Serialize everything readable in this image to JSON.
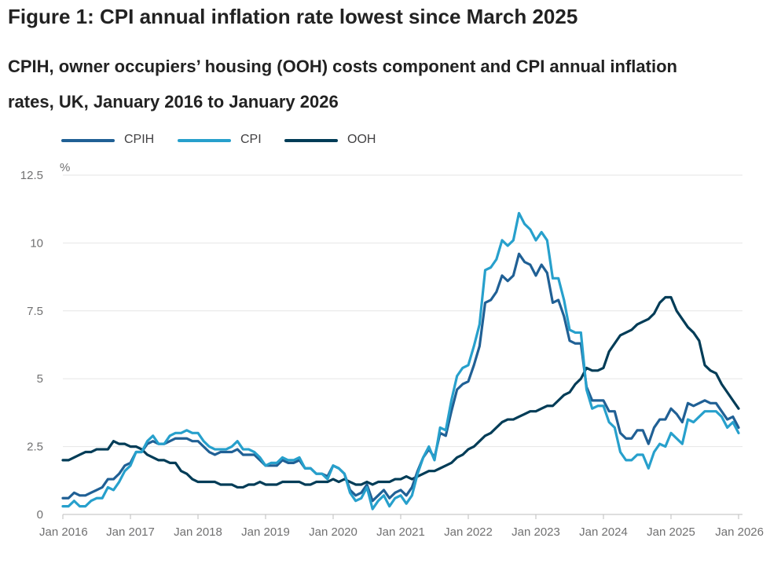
{
  "figure": {
    "title": "Figure 1: CPI annual inflation rate lowest since March 2025",
    "subtitle": "CPIH, owner occupiers’ housing (OOH) costs component and CPI annual inflation rates, UK, January 2016 to January 2026"
  },
  "colors": {
    "CPIH": "#206095",
    "CPI": "#27a0cc",
    "OOH": "#003c57",
    "grid": "#e6e6e6",
    "axis": "#bebebe",
    "text": "#707071"
  },
  "legend": [
    {
      "series": "CPIH",
      "label": "CPIH"
    },
    {
      "series": "CPI",
      "label": "CPI"
    },
    {
      "series": "OOH",
      "label": "OOH"
    }
  ],
  "chart_data": {
    "type": "line",
    "title": "CPIH, owner occupiers’ housing (OOH) costs component and CPI annual inflation rates, UK, January 2016 to January 2026",
    "ylabel": "%",
    "xlabel": "",
    "ylim": [
      0,
      12.5
    ],
    "y_ticks": [
      0,
      2.5,
      5,
      7.5,
      10,
      12.5
    ],
    "y_tick_labels": [
      "0",
      "2.5",
      "5",
      "7.5",
      "10",
      "12.5"
    ],
    "x_tick_labels": [
      "Jan 2016",
      "Jan 2017",
      "Jan 2018",
      "Jan 2019",
      "Jan 2020",
      "Jan 2021",
      "Jan 2022",
      "Jan 2023",
      "Jan 2024",
      "Jan 2025",
      "Jan 2026"
    ],
    "x_start": "Jan 2016",
    "x_end": "Jan 2026",
    "frequency": "monthly",
    "grid": "horizontal",
    "legend_position": "top-left",
    "series": [
      {
        "name": "CPIH",
        "values": [
          0.6,
          0.6,
          0.8,
          0.7,
          0.7,
          0.8,
          0.9,
          1.0,
          1.3,
          1.3,
          1.5,
          1.8,
          1.9,
          2.3,
          2.3,
          2.6,
          2.7,
          2.6,
          2.6,
          2.7,
          2.8,
          2.8,
          2.8,
          2.7,
          2.7,
          2.5,
          2.3,
          2.2,
          2.3,
          2.3,
          2.3,
          2.4,
          2.2,
          2.2,
          2.2,
          2.0,
          1.8,
          1.8,
          1.8,
          2.0,
          1.9,
          1.9,
          2.0,
          1.7,
          1.7,
          1.5,
          1.5,
          1.4,
          1.8,
          1.7,
          1.5,
          0.9,
          0.7,
          0.8,
          1.1,
          0.5,
          0.7,
          0.9,
          0.6,
          0.8,
          0.9,
          0.7,
          1.0,
          1.6,
          2.1,
          2.4,
          2.1,
          3.0,
          2.9,
          3.8,
          4.6,
          4.8,
          4.9,
          5.5,
          6.2,
          7.8,
          7.9,
          8.2,
          8.8,
          8.6,
          8.8,
          9.6,
          9.3,
          9.2,
          8.8,
          9.2,
          8.9,
          7.8,
          7.9,
          7.3,
          6.4,
          6.3,
          6.3,
          4.7,
          4.2,
          4.2,
          4.2,
          3.8,
          3.8,
          3.0,
          2.8,
          2.8,
          3.1,
          3.1,
          2.6,
          3.2,
          3.5,
          3.5,
          3.9,
          3.7,
          3.4,
          4.1,
          4.0,
          4.1,
          4.2,
          4.1,
          4.1,
          3.8,
          3.5,
          3.6,
          3.2
        ]
      },
      {
        "name": "CPI",
        "values": [
          0.3,
          0.3,
          0.5,
          0.3,
          0.3,
          0.5,
          0.6,
          0.6,
          1.0,
          0.9,
          1.2,
          1.6,
          1.8,
          2.3,
          2.3,
          2.7,
          2.9,
          2.6,
          2.6,
          2.9,
          3.0,
          3.0,
          3.1,
          3.0,
          3.0,
          2.7,
          2.5,
          2.4,
          2.4,
          2.4,
          2.5,
          2.7,
          2.4,
          2.4,
          2.3,
          2.1,
          1.8,
          1.9,
          1.9,
          2.1,
          2.0,
          2.0,
          2.1,
          1.7,
          1.7,
          1.5,
          1.5,
          1.3,
          1.8,
          1.7,
          1.5,
          0.8,
          0.5,
          0.6,
          1.0,
          0.2,
          0.5,
          0.7,
          0.3,
          0.6,
          0.7,
          0.4,
          0.7,
          1.5,
          2.1,
          2.5,
          2.0,
          3.2,
          3.1,
          4.2,
          5.1,
          5.4,
          5.5,
          6.2,
          7.0,
          9.0,
          9.1,
          9.4,
          10.1,
          9.9,
          10.1,
          11.1,
          10.7,
          10.5,
          10.1,
          10.4,
          10.1,
          8.7,
          8.7,
          7.9,
          6.8,
          6.7,
          6.7,
          4.6,
          3.9,
          4.0,
          4.0,
          3.4,
          3.2,
          2.3,
          2.0,
          2.0,
          2.2,
          2.2,
          1.7,
          2.3,
          2.6,
          2.5,
          3.0,
          2.8,
          2.6,
          3.5,
          3.4,
          3.6,
          3.8,
          3.8,
          3.8,
          3.6,
          3.2,
          3.4,
          3.0
        ]
      },
      {
        "name": "OOH",
        "values": [
          2.0,
          2.0,
          2.1,
          2.2,
          2.3,
          2.3,
          2.4,
          2.4,
          2.4,
          2.7,
          2.6,
          2.6,
          2.5,
          2.5,
          2.4,
          2.2,
          2.1,
          2.0,
          2.0,
          1.9,
          1.9,
          1.6,
          1.5,
          1.3,
          1.2,
          1.2,
          1.2,
          1.2,
          1.1,
          1.1,
          1.1,
          1.0,
          1.0,
          1.1,
          1.1,
          1.2,
          1.1,
          1.1,
          1.1,
          1.2,
          1.2,
          1.2,
          1.2,
          1.1,
          1.1,
          1.2,
          1.2,
          1.2,
          1.3,
          1.2,
          1.3,
          1.2,
          1.1,
          1.1,
          1.2,
          1.1,
          1.2,
          1.2,
          1.2,
          1.3,
          1.3,
          1.4,
          1.3,
          1.4,
          1.5,
          1.6,
          1.6,
          1.7,
          1.8,
          1.9,
          2.1,
          2.2,
          2.4,
          2.5,
          2.7,
          2.9,
          3.0,
          3.2,
          3.4,
          3.5,
          3.5,
          3.6,
          3.7,
          3.8,
          3.8,
          3.9,
          4.0,
          4.0,
          4.2,
          4.4,
          4.5,
          4.8,
          5.0,
          5.4,
          5.3,
          5.3,
          5.4,
          6.0,
          6.3,
          6.6,
          6.7,
          6.8,
          7.0,
          7.1,
          7.2,
          7.4,
          7.8,
          8.0,
          8.0,
          7.5,
          7.2,
          6.9,
          6.7,
          6.4,
          5.5,
          5.3,
          5.2,
          4.8,
          4.5,
          4.2,
          3.9
        ]
      }
    ]
  }
}
